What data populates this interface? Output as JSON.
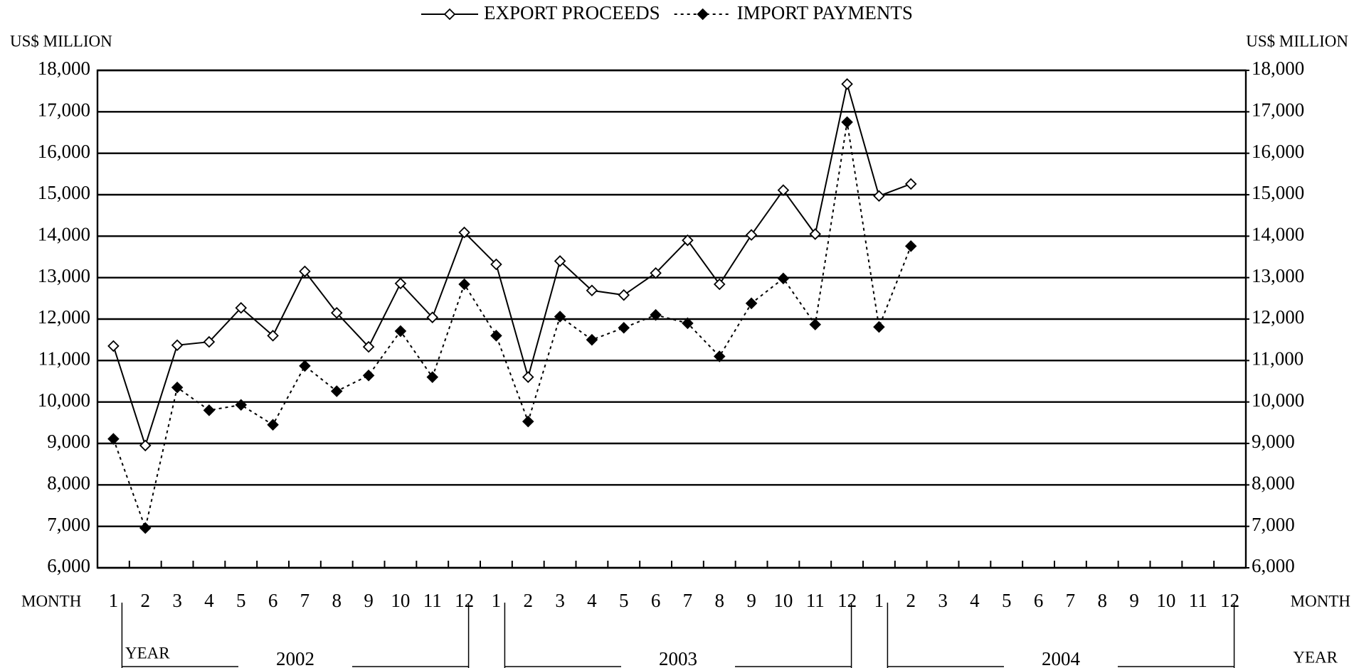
{
  "chart_data": {
    "type": "line",
    "y_label": "US$ MILLION",
    "y2_label": "US$ MILLION",
    "x_label": "MONTH",
    "year_label": "YEAR",
    "years": [
      "2002",
      "2003",
      "2004"
    ],
    "categories": [
      "1",
      "2",
      "3",
      "4",
      "5",
      "6",
      "7",
      "8",
      "9",
      "10",
      "11",
      "12",
      "1",
      "2",
      "3",
      "4",
      "5",
      "6",
      "7",
      "8",
      "9",
      "10",
      "11",
      "12",
      "1",
      "2",
      "3",
      "4",
      "5",
      "6",
      "7",
      "8",
      "9",
      "10",
      "11",
      "12"
    ],
    "series": [
      {
        "name": "EXPORT PROCEEDS",
        "color": "#000000",
        "dash": "solid",
        "marker_fill": "#ffffff",
        "values": [
          11350,
          8950,
          11370,
          11450,
          12270,
          11600,
          13150,
          12150,
          11330,
          12860,
          12040,
          14090,
          13320,
          10600,
          13400,
          12690,
          12580,
          13110,
          13900,
          12840,
          14030,
          15110,
          14050,
          17670,
          14970,
          15260,
          null,
          null,
          null,
          null,
          null,
          null,
          null,
          null,
          null,
          null
        ]
      },
      {
        "name": "IMPORT PAYMENTS",
        "color": "#000000",
        "dash": "dotted",
        "marker_fill": "#000000",
        "values": [
          9110,
          6960,
          10350,
          9800,
          9930,
          9450,
          10870,
          10260,
          10640,
          11710,
          10600,
          12840,
          11600,
          9530,
          12060,
          11500,
          11790,
          12100,
          11900,
          11100,
          12380,
          12980,
          11870,
          16750,
          11810,
          13760,
          null,
          null,
          null,
          null,
          null,
          null,
          null,
          null,
          null,
          null
        ]
      }
    ],
    "ylim": [
      6000,
      18000
    ],
    "yticks": [
      {
        "value": 6000,
        "label": "6,000"
      },
      {
        "value": 7000,
        "label": "7,000"
      },
      {
        "value": 8000,
        "label": "8,000"
      },
      {
        "value": 9000,
        "label": "9,000"
      },
      {
        "value": 10000,
        "label": "10,000"
      },
      {
        "value": 11000,
        "label": "11,000"
      },
      {
        "value": 12000,
        "label": "12,000"
      },
      {
        "value": 13000,
        "label": "13,000"
      },
      {
        "value": 14000,
        "label": "14,000"
      },
      {
        "value": 15000,
        "label": "15,000"
      },
      {
        "value": 16000,
        "label": "16,000"
      },
      {
        "value": 17000,
        "label": "17,000"
      },
      {
        "value": 18000,
        "label": "18,000"
      }
    ],
    "y2lim": [
      6000,
      18000
    ],
    "y2ticks": [
      {
        "value": 6000,
        "label": "6,000"
      },
      {
        "value": 7000,
        "label": "7,000"
      },
      {
        "value": 8000,
        "label": "8,000"
      },
      {
        "value": 9000,
        "label": "9,000"
      },
      {
        "value": 10000,
        "label": "10,000"
      },
      {
        "value": 11000,
        "label": "11,000"
      },
      {
        "value": 12000,
        "label": "12,000"
      },
      {
        "value": 13000,
        "label": "13,000"
      },
      {
        "value": 14000,
        "label": "14,000"
      },
      {
        "value": 15000,
        "label": "15,000"
      },
      {
        "value": 16000,
        "label": "16,000"
      },
      {
        "value": 17000,
        "label": "17,000"
      },
      {
        "value": 18000,
        "label": "18,000"
      }
    ],
    "grid": true
  }
}
